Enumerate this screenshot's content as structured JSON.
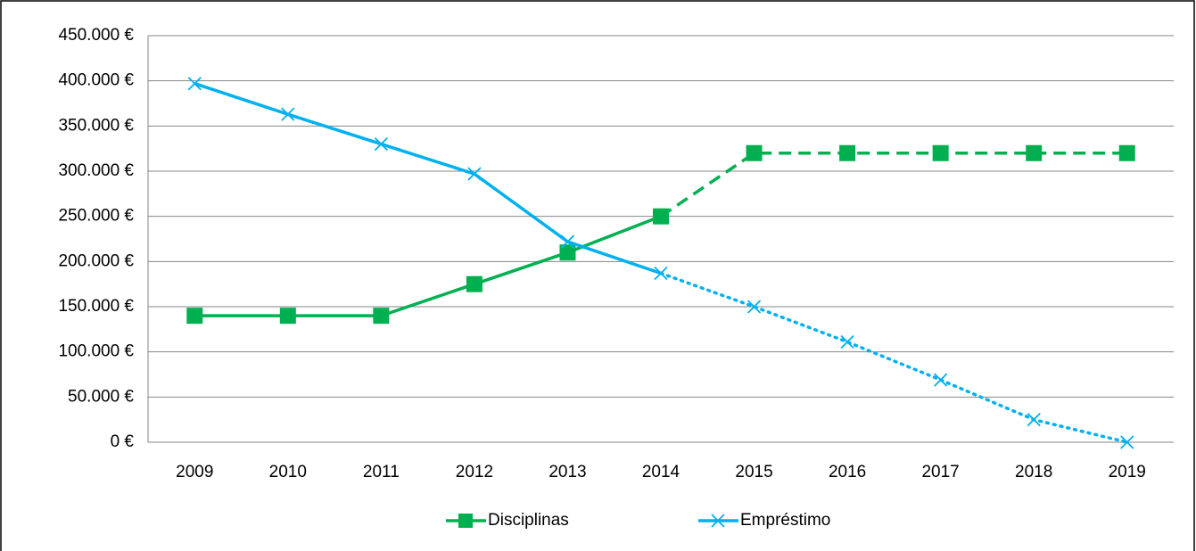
{
  "chart_data": {
    "type": "line",
    "categories": [
      "2009",
      "2010",
      "2011",
      "2012",
      "2013",
      "2014",
      "2015",
      "2016",
      "2017",
      "2018",
      "2019"
    ],
    "series": [
      {
        "name": "Disciplinas",
        "color": "#00b050",
        "marker": "square",
        "dash_from": 5,
        "dash": "dashed",
        "values": [
          140000,
          140000,
          140000,
          175000,
          210000,
          250000,
          320000,
          320000,
          320000,
          320000,
          320000
        ]
      },
      {
        "name": "Empréstimo",
        "color": "#00b0f0",
        "marker": "x",
        "dash_from": 5,
        "dash": "dotted",
        "values": [
          397000,
          363000,
          330000,
          297000,
          222000,
          187000,
          150000,
          111000,
          69000,
          25000,
          0
        ]
      }
    ],
    "ylim": [
      0,
      450000
    ],
    "yticks": [
      {
        "value": 0,
        "label": "0 €"
      },
      {
        "value": 50000,
        "label": "50.000 €"
      },
      {
        "value": 100000,
        "label": "100.000 €"
      },
      {
        "value": 150000,
        "label": "150.000 €"
      },
      {
        "value": 200000,
        "label": "200.000 €"
      },
      {
        "value": 250000,
        "label": "250.000 €"
      },
      {
        "value": 300000,
        "label": "300.000 €"
      },
      {
        "value": 350000,
        "label": "350.000 €"
      },
      {
        "value": 400000,
        "label": "400.000 €"
      },
      {
        "value": 450000,
        "label": "450.000 €"
      }
    ],
    "grid": true,
    "legend": "bottom"
  }
}
